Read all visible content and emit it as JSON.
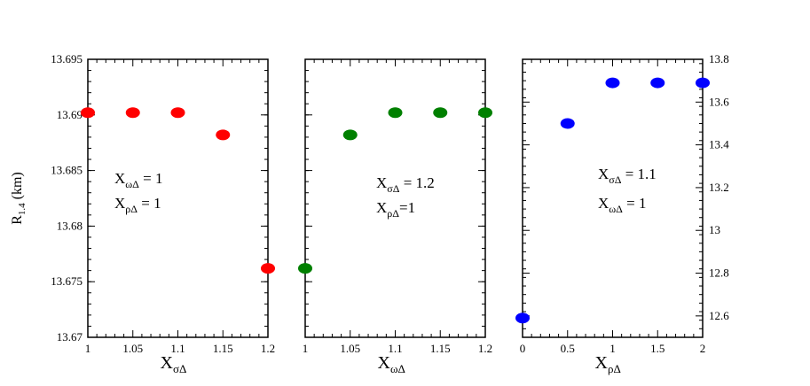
{
  "chart_data": {
    "type": "scatter",
    "ylabel": {
      "main": "R",
      "sub": "1.4",
      "suffix": " (km)"
    },
    "left_y_ticks": [
      "13.67",
      "13.675",
      "13.68",
      "13.685",
      "13.69",
      "13.695"
    ],
    "right_y_ticks": [
      "12.6",
      "12.8",
      "13",
      "13.2",
      "13.4",
      "13.6",
      "13.8"
    ],
    "panels": [
      {
        "xlabel": {
          "main": "X",
          "sub": "σΔ"
        },
        "x_ticks": [
          "1",
          "1.05",
          "1.1",
          "1.15",
          "1.2"
        ],
        "xlim": [
          1.0,
          1.2
        ],
        "ylim": [
          13.67,
          13.695
        ],
        "y_axis_side": "left",
        "color": "#ff0000",
        "points": [
          {
            "x": 1.0,
            "y": 13.6902
          },
          {
            "x": 1.05,
            "y": 13.6902
          },
          {
            "x": 1.1,
            "y": 13.6902
          },
          {
            "x": 1.15,
            "y": 13.6882
          },
          {
            "x": 1.2,
            "y": 13.6762
          }
        ],
        "annotations": [
          {
            "main": "X",
            "sub": "ωΔ",
            "rest": " = 1"
          },
          {
            "main": "X",
            "sub": "ρΔ",
            "rest": " = 1"
          }
        ]
      },
      {
        "xlabel": {
          "main": "X",
          "sub": "ωΔ"
        },
        "x_ticks": [
          "1",
          "1.05",
          "1.1",
          "1.15",
          "1.2"
        ],
        "xlim": [
          1.0,
          1.2
        ],
        "ylim": [
          13.67,
          13.695
        ],
        "y_axis_side": "none",
        "color": "#008000",
        "points": [
          {
            "x": 1.0,
            "y": 13.6762
          },
          {
            "x": 1.05,
            "y": 13.6882
          },
          {
            "x": 1.1,
            "y": 13.6902
          },
          {
            "x": 1.15,
            "y": 13.6902
          },
          {
            "x": 1.2,
            "y": 13.6902
          }
        ],
        "annotations": [
          {
            "main": "X",
            "sub": "σΔ",
            "rest": " = 1.2"
          },
          {
            "main": "X",
            "sub": "ρΔ",
            "rest": "=1"
          }
        ]
      },
      {
        "xlabel": {
          "main": "X",
          "sub": "ρΔ"
        },
        "x_ticks": [
          "0",
          "0.5",
          "1",
          "1.5",
          "2"
        ],
        "xlim": [
          0,
          2
        ],
        "ylim": [
          12.5,
          13.8
        ],
        "y_axis_side": "right",
        "color": "#0000ff",
        "points": [
          {
            "x": 0,
            "y": 12.59
          },
          {
            "x": 0.5,
            "y": 13.5
          },
          {
            "x": 1.0,
            "y": 13.69
          },
          {
            "x": 1.5,
            "y": 13.69
          },
          {
            "x": 2.0,
            "y": 13.69
          }
        ],
        "annotations": [
          {
            "main": "X",
            "sub": "σΔ",
            "rest": " = 1.1"
          },
          {
            "main": "X",
            "sub": "ωΔ",
            "rest": " = 1"
          }
        ]
      }
    ]
  }
}
